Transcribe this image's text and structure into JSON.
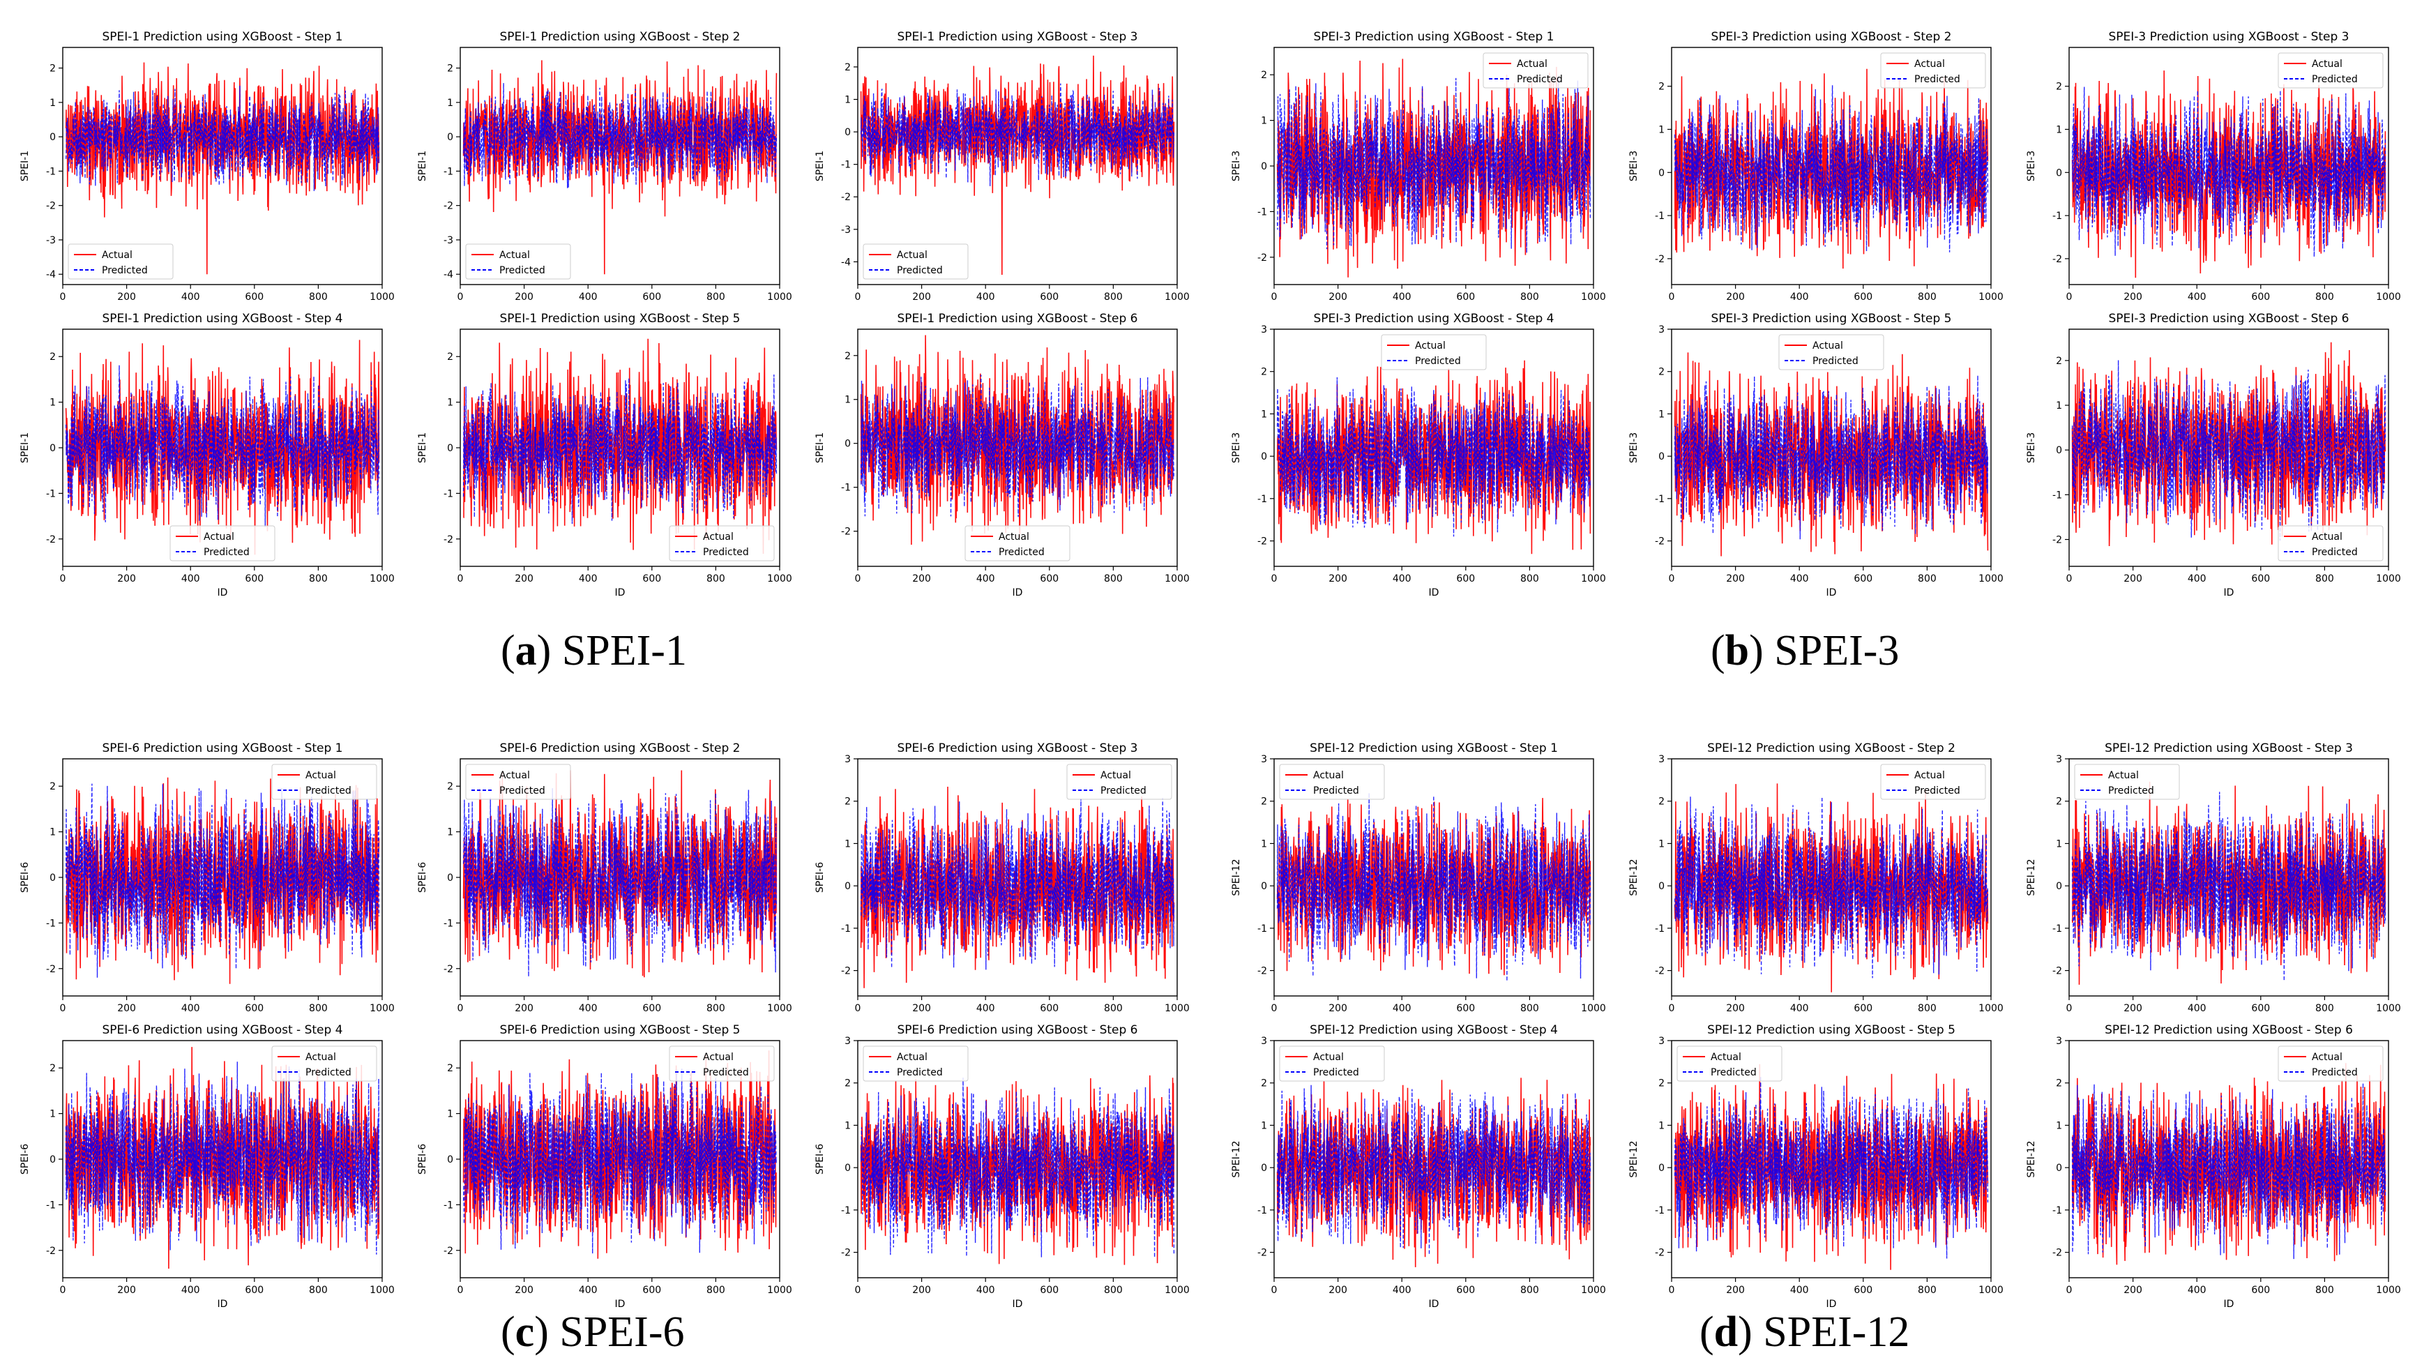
{
  "figure": {
    "colors": {
      "actual": "#ff0000",
      "predicted": "#0000ff",
      "axis": "#000000"
    },
    "legend": {
      "actual": "Actual",
      "predicted": "Predicted"
    },
    "xlabel": "ID",
    "xticks": [
      "0",
      "200",
      "400",
      "600",
      "800",
      "1000"
    ],
    "panels": [
      {
        "letter": "a",
        "label": "SPEI-1"
      },
      {
        "letter": "b",
        "label": "SPEI-3"
      },
      {
        "letter": "c",
        "label": "SPEI-6"
      },
      {
        "letter": "d",
        "label": "SPEI-12"
      }
    ]
  },
  "chart_data": [
    {
      "type": "line",
      "panel": "a",
      "title": "SPEI-1 Prediction using XGBoost - Step 1",
      "xlabel": "",
      "ylabel": "SPEI-1",
      "xlim": [
        0,
        1000
      ],
      "ylim": [
        -4.3,
        2.6
      ],
      "yticks": [
        -4,
        -3,
        -2,
        -1,
        0,
        1,
        2
      ],
      "legend": "lower left",
      "series": [
        {
          "name": "Actual",
          "amp": 1.5,
          "min": -4.0,
          "seed": 11
        },
        {
          "name": "Predicted",
          "amp": 1.05,
          "seed": 12
        }
      ]
    },
    {
      "type": "line",
      "panel": "a",
      "title": "SPEI-1 Prediction using XGBoost - Step 2",
      "xlabel": "",
      "ylabel": "SPEI-1",
      "xlim": [
        0,
        1000
      ],
      "ylim": [
        -4.3,
        2.6
      ],
      "yticks": [
        -4,
        -3,
        -2,
        -1,
        0,
        1,
        2
      ],
      "legend": "lower left",
      "series": [
        {
          "name": "Actual",
          "amp": 1.5,
          "min": -4.0,
          "seed": 21
        },
        {
          "name": "Predicted",
          "amp": 1.05,
          "seed": 22
        }
      ]
    },
    {
      "type": "line",
      "panel": "a",
      "title": "SPEI-1 Prediction using XGBoost - Step 3",
      "xlabel": "",
      "ylabel": "SPEI-1",
      "xlim": [
        0,
        1000
      ],
      "ylim": [
        -4.7,
        2.6
      ],
      "yticks": [
        -4,
        -3,
        -2,
        -1,
        0,
        1,
        2
      ],
      "legend": "lower left",
      "series": [
        {
          "name": "Actual",
          "amp": 1.5,
          "min": -4.4,
          "seed": 31
        },
        {
          "name": "Predicted",
          "amp": 1.05,
          "seed": 32
        }
      ]
    },
    {
      "type": "line",
      "panel": "a",
      "title": "SPEI-1 Prediction using XGBoost - Step 4",
      "xlabel": "ID",
      "ylabel": "SPEI-1",
      "xlim": [
        0,
        1000
      ],
      "ylim": [
        -2.6,
        2.6
      ],
      "yticks": [
        -2,
        -1,
        0,
        1,
        2
      ],
      "legend": "lower center",
      "series": [
        {
          "name": "Actual",
          "amp": 1.6,
          "seed": 41
        },
        {
          "name": "Predicted",
          "amp": 1.15,
          "seed": 42
        }
      ]
    },
    {
      "type": "line",
      "panel": "a",
      "title": "SPEI-1 Prediction using XGBoost - Step 5",
      "xlabel": "ID",
      "ylabel": "SPEI-1",
      "xlim": [
        0,
        1000
      ],
      "ylim": [
        -2.6,
        2.6
      ],
      "yticks": [
        -2,
        -1,
        0,
        1,
        2
      ],
      "legend": "lower right",
      "series": [
        {
          "name": "Actual",
          "amp": 1.6,
          "seed": 51
        },
        {
          "name": "Predicted",
          "amp": 1.15,
          "seed": 52
        }
      ]
    },
    {
      "type": "line",
      "panel": "a",
      "title": "SPEI-1 Prediction using XGBoost - Step 6",
      "xlabel": "ID",
      "ylabel": "SPEI-1",
      "xlim": [
        0,
        1000
      ],
      "ylim": [
        -2.8,
        2.6
      ],
      "yticks": [
        -2,
        -1,
        0,
        1,
        2
      ],
      "legend": "lower center",
      "series": [
        {
          "name": "Actual",
          "amp": 1.6,
          "seed": 61
        },
        {
          "name": "Predicted",
          "amp": 1.15,
          "seed": 62
        }
      ]
    },
    {
      "type": "line",
      "panel": "b",
      "title": "SPEI-3 Prediction using XGBoost - Step 1",
      "xlabel": "",
      "ylabel": "SPEI-3",
      "xlim": [
        0,
        1000
      ],
      "ylim": [
        -2.6,
        2.6
      ],
      "yticks": [
        -2,
        -1,
        0,
        1,
        2
      ],
      "legend": "upper right",
      "series": [
        {
          "name": "Actual",
          "amp": 1.6,
          "seed": 71
        },
        {
          "name": "Predicted",
          "amp": 1.3,
          "seed": 72
        }
      ]
    },
    {
      "type": "line",
      "panel": "b",
      "title": "SPEI-3 Prediction using XGBoost - Step 2",
      "xlabel": "",
      "ylabel": "SPEI-3",
      "xlim": [
        0,
        1000
      ],
      "ylim": [
        -2.6,
        2.9
      ],
      "yticks": [
        -2,
        -1,
        0,
        1,
        2
      ],
      "legend": "upper right",
      "series": [
        {
          "name": "Actual",
          "amp": 1.6,
          "seed": 81
        },
        {
          "name": "Predicted",
          "amp": 1.3,
          "seed": 82
        }
      ]
    },
    {
      "type": "line",
      "panel": "b",
      "title": "SPEI-3 Prediction using XGBoost - Step 3",
      "xlabel": "",
      "ylabel": "SPEI-3",
      "xlim": [
        0,
        1000
      ],
      "ylim": [
        -2.6,
        2.9
      ],
      "yticks": [
        -2,
        -1,
        0,
        1,
        2
      ],
      "legend": "upper right",
      "series": [
        {
          "name": "Actual",
          "amp": 1.6,
          "seed": 91
        },
        {
          "name": "Predicted",
          "amp": 1.3,
          "seed": 92
        }
      ]
    },
    {
      "type": "line",
      "panel": "b",
      "title": "SPEI-3 Prediction using XGBoost - Step 4",
      "xlabel": "ID",
      "ylabel": "SPEI-3",
      "xlim": [
        0,
        1000
      ],
      "ylim": [
        -2.6,
        3.0
      ],
      "yticks": [
        -2,
        -1,
        0,
        1,
        2,
        3
      ],
      "legend": "upper center",
      "series": [
        {
          "name": "Actual",
          "amp": 1.6,
          "seed": 101
        },
        {
          "name": "Predicted",
          "amp": 1.3,
          "seed": 102
        }
      ]
    },
    {
      "type": "line",
      "panel": "b",
      "title": "SPEI-3 Prediction using XGBoost - Step 5",
      "xlabel": "ID",
      "ylabel": "SPEI-3",
      "xlim": [
        0,
        1000
      ],
      "ylim": [
        -2.6,
        3.0
      ],
      "yticks": [
        -2,
        -1,
        0,
        1,
        2,
        3
      ],
      "legend": "upper center",
      "series": [
        {
          "name": "Actual",
          "amp": 1.6,
          "seed": 111
        },
        {
          "name": "Predicted",
          "amp": 1.3,
          "seed": 112
        }
      ]
    },
    {
      "type": "line",
      "panel": "b",
      "title": "SPEI-3 Prediction using XGBoost - Step 6",
      "xlabel": "ID",
      "ylabel": "SPEI-3",
      "xlim": [
        0,
        1000
      ],
      "ylim": [
        -2.6,
        2.7
      ],
      "yticks": [
        -2,
        -1,
        0,
        1,
        2
      ],
      "legend": "lower right",
      "series": [
        {
          "name": "Actual",
          "amp": 1.6,
          "seed": 121
        },
        {
          "name": "Predicted",
          "amp": 1.3,
          "seed": 122
        }
      ]
    },
    {
      "type": "line",
      "panel": "c",
      "title": "SPEI-6 Prediction using XGBoost - Step 1",
      "xlabel": "",
      "ylabel": "SPEI-6",
      "xlim": [
        0,
        1000
      ],
      "ylim": [
        -2.6,
        2.6
      ],
      "yticks": [
        -2,
        -1,
        0,
        1,
        2
      ],
      "legend": "upper right",
      "series": [
        {
          "name": "Actual",
          "amp": 1.6,
          "seed": 131
        },
        {
          "name": "Predicted",
          "amp": 1.4,
          "seed": 132
        }
      ]
    },
    {
      "type": "line",
      "panel": "c",
      "title": "SPEI-6 Prediction using XGBoost - Step 2",
      "xlabel": "",
      "ylabel": "SPEI-6",
      "xlim": [
        0,
        1000
      ],
      "ylim": [
        -2.6,
        2.6
      ],
      "yticks": [
        -2,
        -1,
        0,
        1,
        2
      ],
      "legend": "upper left",
      "series": [
        {
          "name": "Actual",
          "amp": 1.6,
          "seed": 141
        },
        {
          "name": "Predicted",
          "amp": 1.4,
          "seed": 142
        }
      ]
    },
    {
      "type": "line",
      "panel": "c",
      "title": "SPEI-6 Prediction using XGBoost - Step 3",
      "xlabel": "",
      "ylabel": "SPEI-6",
      "xlim": [
        0,
        1000
      ],
      "ylim": [
        -2.6,
        3.0
      ],
      "yticks": [
        -2,
        -1,
        0,
        1,
        2,
        3
      ],
      "legend": "upper right",
      "series": [
        {
          "name": "Actual",
          "amp": 1.6,
          "seed": 151
        },
        {
          "name": "Predicted",
          "amp": 1.4,
          "seed": 152
        }
      ]
    },
    {
      "type": "line",
      "panel": "c",
      "title": "SPEI-6 Prediction using XGBoost - Step 4",
      "xlabel": "ID",
      "ylabel": "SPEI-6",
      "xlim": [
        0,
        1000
      ],
      "ylim": [
        -2.6,
        2.6
      ],
      "yticks": [
        -2,
        -1,
        0,
        1,
        2
      ],
      "legend": "upper right",
      "series": [
        {
          "name": "Actual",
          "amp": 1.6,
          "seed": 161
        },
        {
          "name": "Predicted",
          "amp": 1.4,
          "seed": 162
        }
      ]
    },
    {
      "type": "line",
      "panel": "c",
      "title": "SPEI-6 Prediction using XGBoost - Step 5",
      "xlabel": "ID",
      "ylabel": "SPEI-6",
      "xlim": [
        0,
        1000
      ],
      "ylim": [
        -2.6,
        2.6
      ],
      "yticks": [
        -2,
        -1,
        0,
        1,
        2
      ],
      "legend": "upper right",
      "series": [
        {
          "name": "Actual",
          "amp": 1.6,
          "seed": 171
        },
        {
          "name": "Predicted",
          "amp": 1.4,
          "seed": 172
        }
      ]
    },
    {
      "type": "line",
      "panel": "c",
      "title": "SPEI-6 Prediction using XGBoost - Step 6",
      "xlabel": "ID",
      "ylabel": "SPEI-6",
      "xlim": [
        0,
        1000
      ],
      "ylim": [
        -2.6,
        3.0
      ],
      "yticks": [
        -2,
        -1,
        0,
        1,
        2,
        3
      ],
      "legend": "upper left",
      "series": [
        {
          "name": "Actual",
          "amp": 1.6,
          "seed": 181
        },
        {
          "name": "Predicted",
          "amp": 1.4,
          "seed": 182
        }
      ]
    },
    {
      "type": "line",
      "panel": "d",
      "title": "SPEI-12 Prediction using XGBoost - Step 1",
      "xlabel": "",
      "ylabel": "SPEI-12",
      "xlim": [
        0,
        1000
      ],
      "ylim": [
        -2.6,
        3.0
      ],
      "yticks": [
        -2,
        -1,
        0,
        1,
        2,
        3
      ],
      "legend": "upper left",
      "series": [
        {
          "name": "Actual",
          "amp": 1.6,
          "seed": 191
        },
        {
          "name": "Predicted",
          "amp": 1.45,
          "seed": 192
        }
      ]
    },
    {
      "type": "line",
      "panel": "d",
      "title": "SPEI-12 Prediction using XGBoost - Step 2",
      "xlabel": "",
      "ylabel": "SPEI-12",
      "xlim": [
        0,
        1000
      ],
      "ylim": [
        -2.6,
        3.0
      ],
      "yticks": [
        -2,
        -1,
        0,
        1,
        2,
        3
      ],
      "legend": "upper right",
      "series": [
        {
          "name": "Actual",
          "amp": 1.6,
          "seed": 201
        },
        {
          "name": "Predicted",
          "amp": 1.45,
          "seed": 202
        }
      ]
    },
    {
      "type": "line",
      "panel": "d",
      "title": "SPEI-12 Prediction using XGBoost - Step 3",
      "xlabel": "",
      "ylabel": "SPEI-12",
      "xlim": [
        0,
        1000
      ],
      "ylim": [
        -2.6,
        3.0
      ],
      "yticks": [
        -2,
        -1,
        0,
        1,
        2,
        3
      ],
      "legend": "upper left",
      "series": [
        {
          "name": "Actual",
          "amp": 1.6,
          "seed": 211
        },
        {
          "name": "Predicted",
          "amp": 1.45,
          "seed": 212
        }
      ]
    },
    {
      "type": "line",
      "panel": "d",
      "title": "SPEI-12 Prediction using XGBoost - Step 4",
      "xlabel": "ID",
      "ylabel": "SPEI-12",
      "xlim": [
        0,
        1000
      ],
      "ylim": [
        -2.6,
        3.0
      ],
      "yticks": [
        -2,
        -1,
        0,
        1,
        2,
        3
      ],
      "legend": "upper left",
      "series": [
        {
          "name": "Actual",
          "amp": 1.6,
          "seed": 221
        },
        {
          "name": "Predicted",
          "amp": 1.45,
          "seed": 222
        }
      ]
    },
    {
      "type": "line",
      "panel": "d",
      "title": "SPEI-12 Prediction using XGBoost - Step 5",
      "xlabel": "ID",
      "ylabel": "SPEI-12",
      "xlim": [
        0,
        1000
      ],
      "ylim": [
        -2.6,
        3.0
      ],
      "yticks": [
        -2,
        -1,
        0,
        1,
        2,
        3
      ],
      "legend": "upper left",
      "series": [
        {
          "name": "Actual",
          "amp": 1.6,
          "seed": 231
        },
        {
          "name": "Predicted",
          "amp": 1.45,
          "seed": 232
        }
      ]
    },
    {
      "type": "line",
      "panel": "d",
      "title": "SPEI-12 Prediction using XGBoost - Step 6",
      "xlabel": "ID",
      "ylabel": "SPEI-12",
      "xlim": [
        0,
        1000
      ],
      "ylim": [
        -2.6,
        3.0
      ],
      "yticks": [
        -2,
        -1,
        0,
        1,
        2,
        3
      ],
      "legend": "upper right",
      "series": [
        {
          "name": "Actual",
          "amp": 1.6,
          "seed": 241
        },
        {
          "name": "Predicted",
          "amp": 1.45,
          "seed": 242
        }
      ]
    }
  ]
}
